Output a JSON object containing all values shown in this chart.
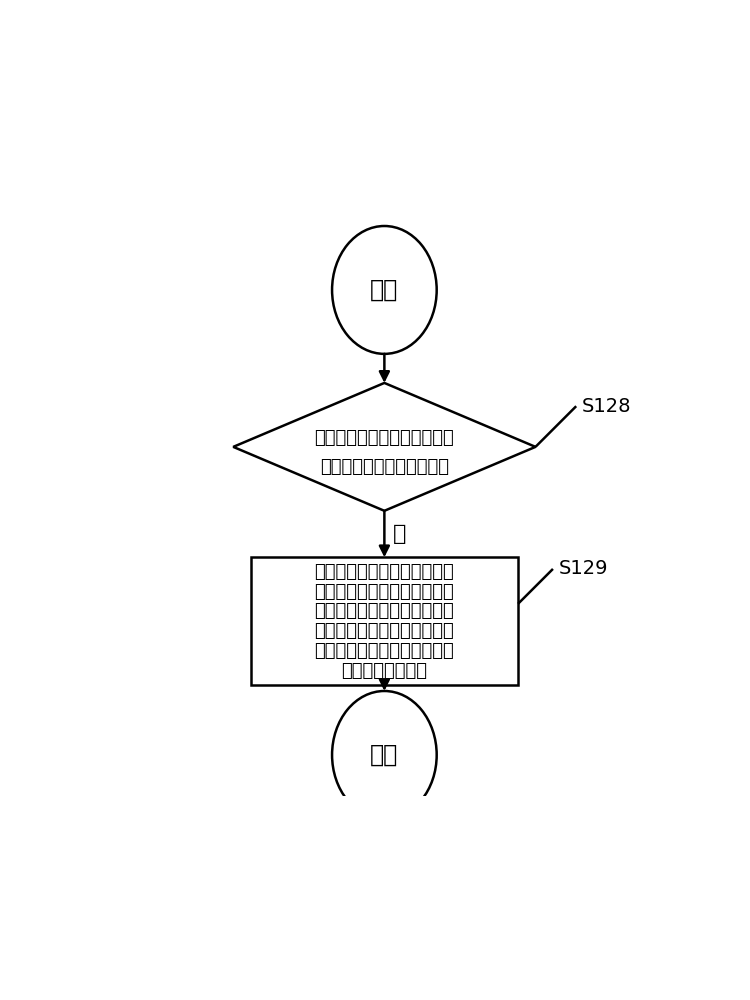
{
  "bg_color": "#ffffff",
  "line_color": "#000000",
  "text_color": "#000000",
  "start_label": "开始",
  "end_label": "结束",
  "diamond_text_line1": "检测车辆前方第二预定距离范",
  "diamond_text_line2": "围内是否存在交通拥堵路段",
  "rect_text_lines": [
    "在距离所述交通拥堵路段第一",
    "预定距离时，通过人机交互系",
    "统输出提示驾驶员进行换道的",
    "提示信息，并控制车辆的当前",
    "车速调整至小于车辆当前所处",
    "路段的最高限速值"
  ],
  "yes_label": "是",
  "s128_label": "S128",
  "s129_label": "S129",
  "figsize": [
    7.5,
    10.0
  ],
  "dpi": 100
}
